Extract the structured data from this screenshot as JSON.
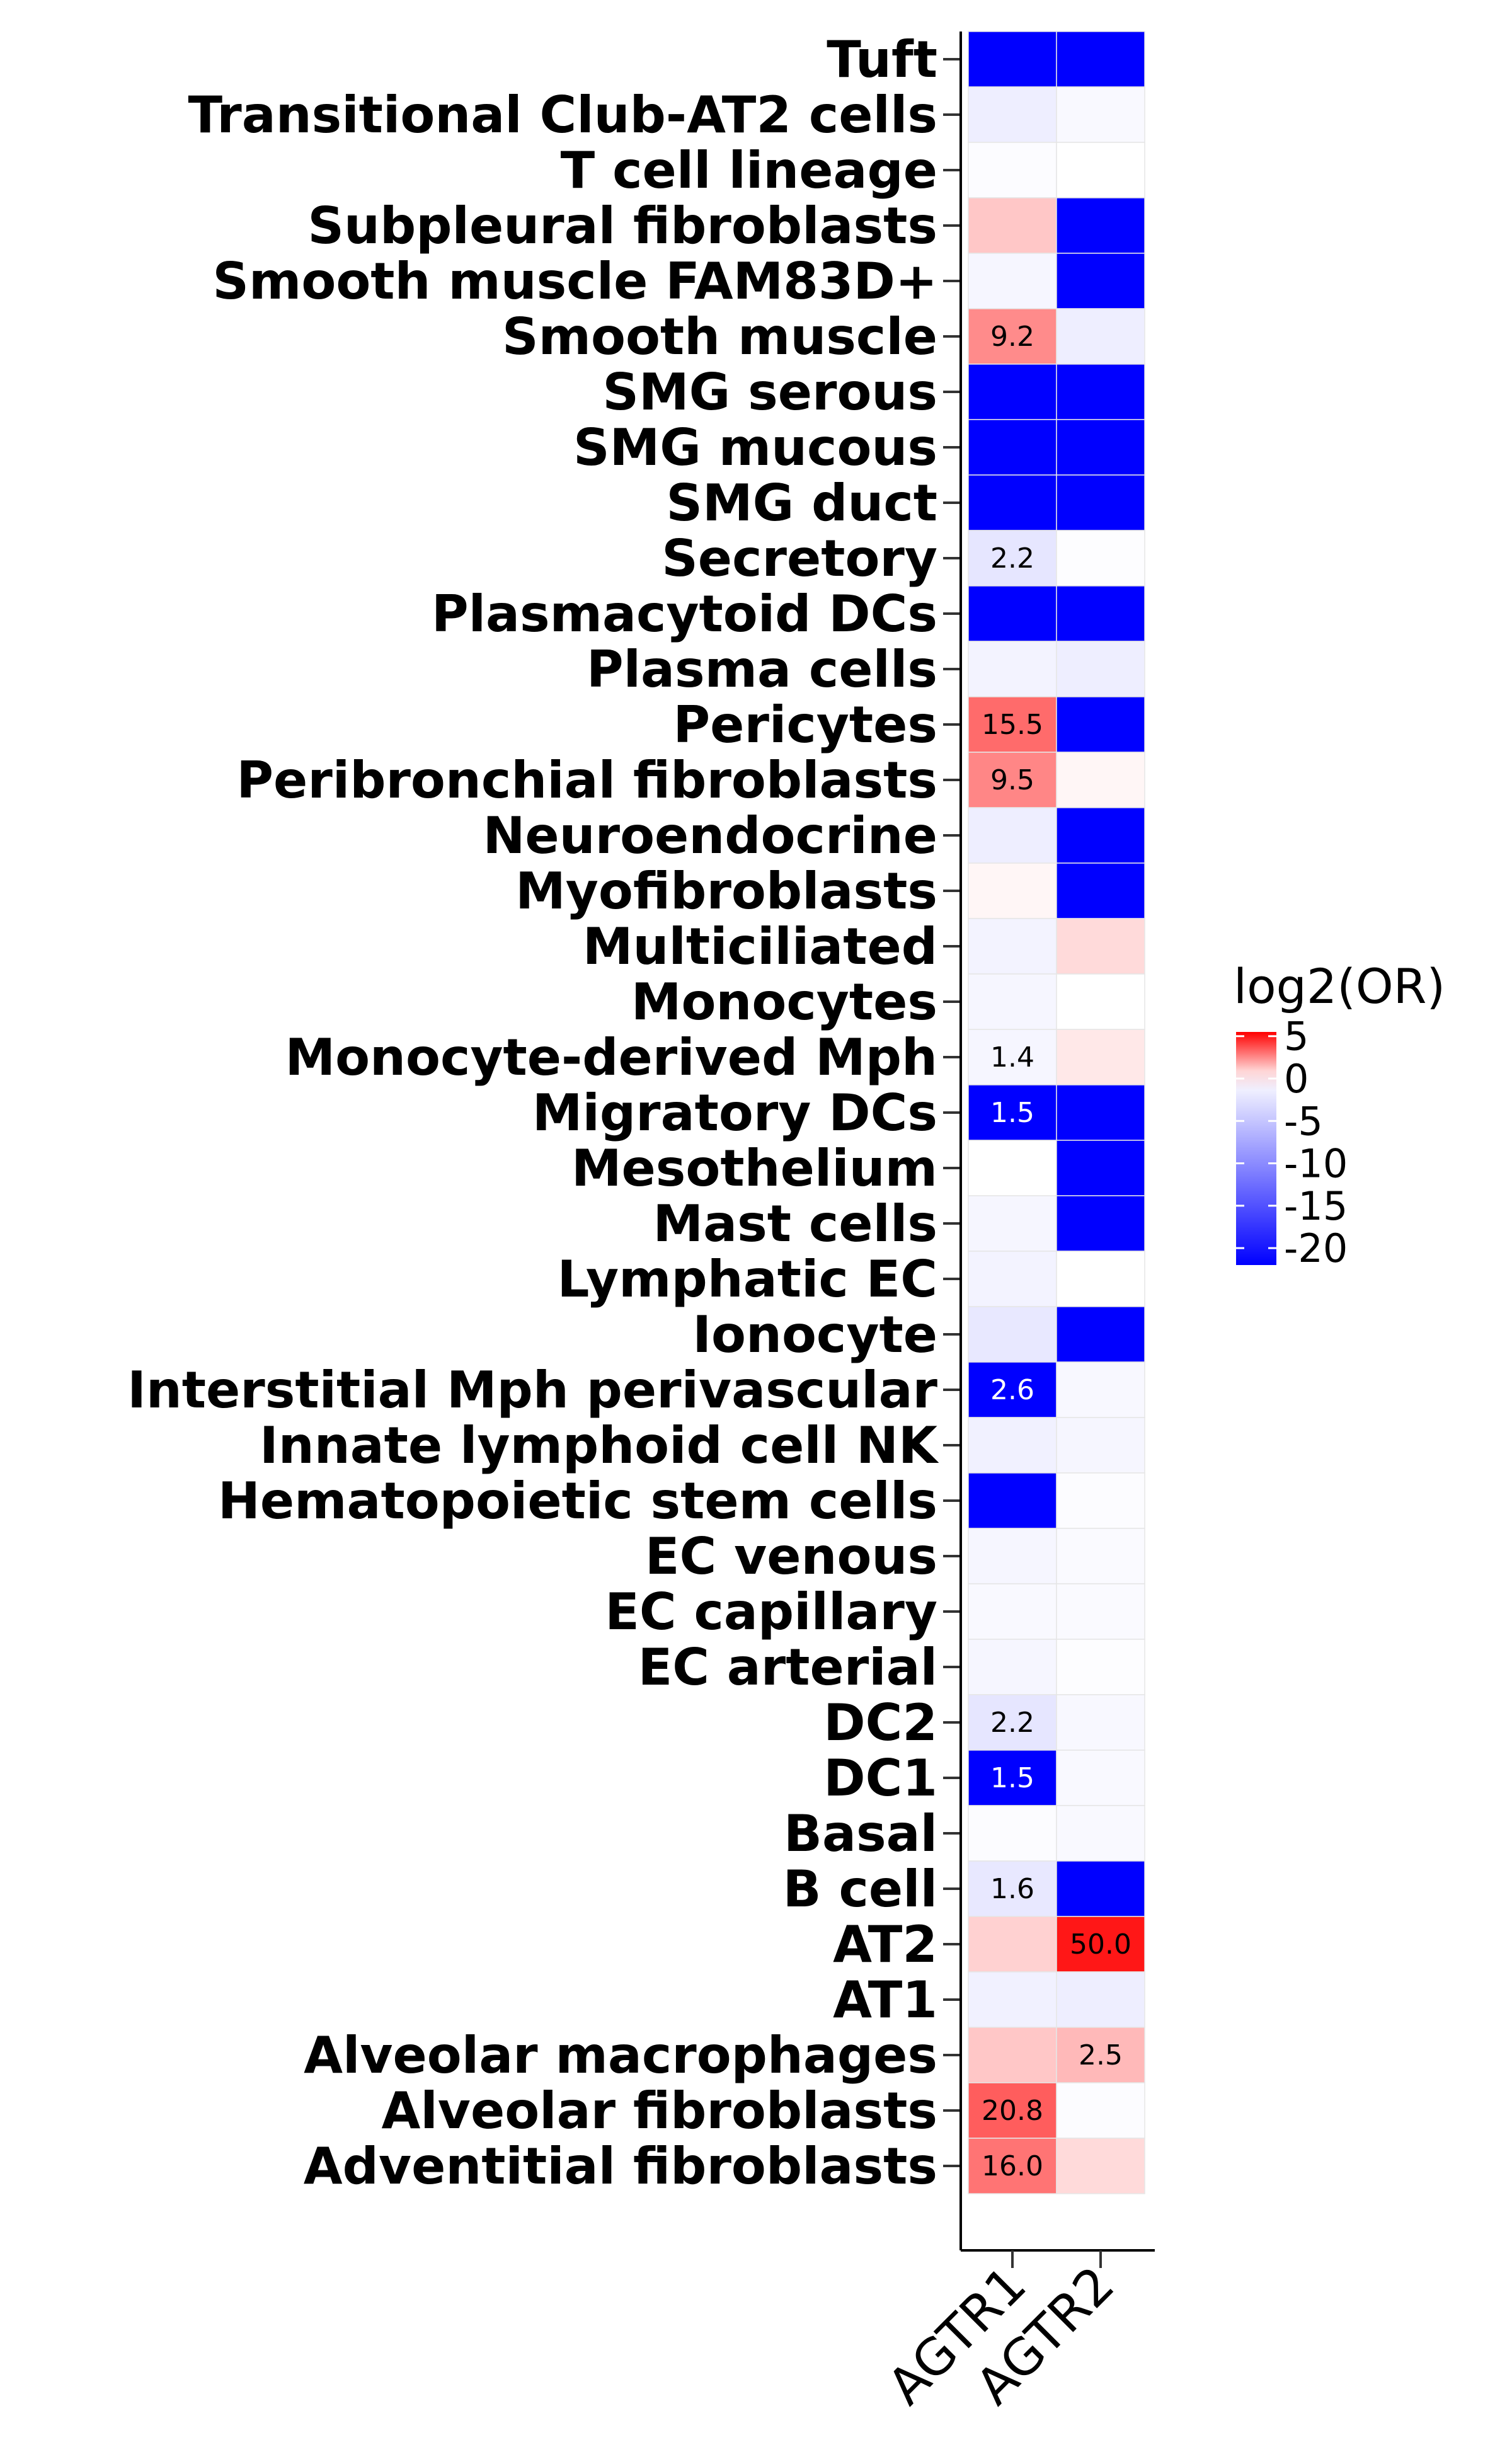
{
  "chart_data": {
    "type": "heatmap",
    "rows": [
      "Tuft",
      "Transitional Club-AT2 cells",
      "T cell lineage",
      "Subpleural fibroblasts",
      "Smooth muscle FAM83D+",
      "Smooth muscle",
      "SMG serous",
      "SMG mucous",
      "SMG duct",
      "Secretory",
      "Plasmacytoid DCs",
      "Plasma cells",
      "Pericytes",
      "Peribronchial fibroblasts",
      "Neuroendocrine",
      "Myofibroblasts",
      "Multiciliated",
      "Monocytes",
      "Monocyte-derived Mph",
      "Migratory DCs",
      "Mesothelium",
      "Mast cells",
      "Lymphatic EC",
      "Ionocyte",
      "Interstitial Mph perivascular",
      "Innate lymphoid cell NK",
      "Hematopoietic stem cells",
      "EC venous",
      "EC capillary",
      "EC arterial",
      "DC2",
      "DC1",
      "Basal",
      "B cell",
      "AT2",
      "AT1",
      "Alveolar macrophages",
      "Alveolar fibroblasts",
      "Adventitial fibroblasts"
    ],
    "columns": [
      "AGTR1",
      "AGTR2"
    ],
    "values": [
      [
        -22,
        -22
      ],
      [
        -1.5,
        -0.5
      ],
      [
        -0.3,
        0
      ],
      [
        1.2,
        -22
      ],
      [
        -0.8,
        -22
      ],
      [
        2.5,
        -1.5
      ],
      [
        -22,
        -22
      ],
      [
        -22,
        -22
      ],
      [
        -22,
        -22
      ],
      [
        -2.2,
        -0.2
      ],
      [
        -22,
        -22
      ],
      [
        -1,
        -1.5
      ],
      [
        3.2,
        -22
      ],
      [
        2.6,
        0.2
      ],
      [
        -1.5,
        -22
      ],
      [
        0.2,
        -22
      ],
      [
        -1,
        0.8
      ],
      [
        -0.8,
        0
      ],
      [
        -0.8,
        0.5
      ],
      [
        -22,
        -22
      ],
      [
        0,
        -22
      ],
      [
        -0.8,
        -22
      ],
      [
        -1,
        0
      ],
      [
        -2,
        -22
      ],
      [
        -22,
        -0.6
      ],
      [
        -1.2,
        -0.8
      ],
      [
        -22,
        -0.3
      ],
      [
        -0.8,
        -0.4
      ],
      [
        -0.5,
        -0.4
      ],
      [
        -0.8,
        -0.2
      ],
      [
        -2.2,
        -0.6
      ],
      [
        -22,
        -0.5
      ],
      [
        -0.3,
        -0.5
      ],
      [
        -2,
        -22
      ],
      [
        1,
        5
      ],
      [
        -1.2,
        -1.5
      ],
      [
        1.2,
        1.5
      ],
      [
        3.5,
        -0.3
      ],
      [
        3,
        0.8
      ]
    ],
    "annotations": [
      [
        "",
        ""
      ],
      [
        "",
        ""
      ],
      [
        "",
        ""
      ],
      [
        "",
        ""
      ],
      [
        "",
        ""
      ],
      [
        "9.2",
        ""
      ],
      [
        "",
        ""
      ],
      [
        "",
        ""
      ],
      [
        "",
        ""
      ],
      [
        "2.2",
        ""
      ],
      [
        "",
        ""
      ],
      [
        "",
        ""
      ],
      [
        "15.5",
        ""
      ],
      [
        "9.5",
        ""
      ],
      [
        "",
        ""
      ],
      [
        "",
        ""
      ],
      [
        "",
        ""
      ],
      [
        "",
        ""
      ],
      [
        "1.4",
        ""
      ],
      [
        "1.5",
        ""
      ],
      [
        "",
        ""
      ],
      [
        "",
        ""
      ],
      [
        "",
        ""
      ],
      [
        "",
        ""
      ],
      [
        "2.6",
        ""
      ],
      [
        "",
        ""
      ],
      [
        "",
        ""
      ],
      [
        "",
        ""
      ],
      [
        "",
        ""
      ],
      [
        "",
        ""
      ],
      [
        "2.2",
        ""
      ],
      [
        "1.5",
        ""
      ],
      [
        "",
        ""
      ],
      [
        "1.6",
        ""
      ],
      [
        "",
        "50.0"
      ],
      [
        "",
        ""
      ],
      [
        "",
        "2.5"
      ],
      [
        "20.8",
        ""
      ],
      [
        "16.0",
        ""
      ]
    ],
    "legend": {
      "title": "log2(OR)",
      "ticks": [
        "5",
        "0",
        "-5",
        "-10",
        "-15",
        "-20"
      ],
      "tick_values": [
        5,
        0,
        -5,
        -10,
        -15,
        -20
      ],
      "range": [
        -22,
        5.5
      ],
      "colors": {
        "low": "#0000FF",
        "mid": "#FFFFFF",
        "high": "#FF0000"
      }
    },
    "xlabel": "",
    "ylabel": "",
    "grid": false,
    "legend_placement": "right"
  }
}
